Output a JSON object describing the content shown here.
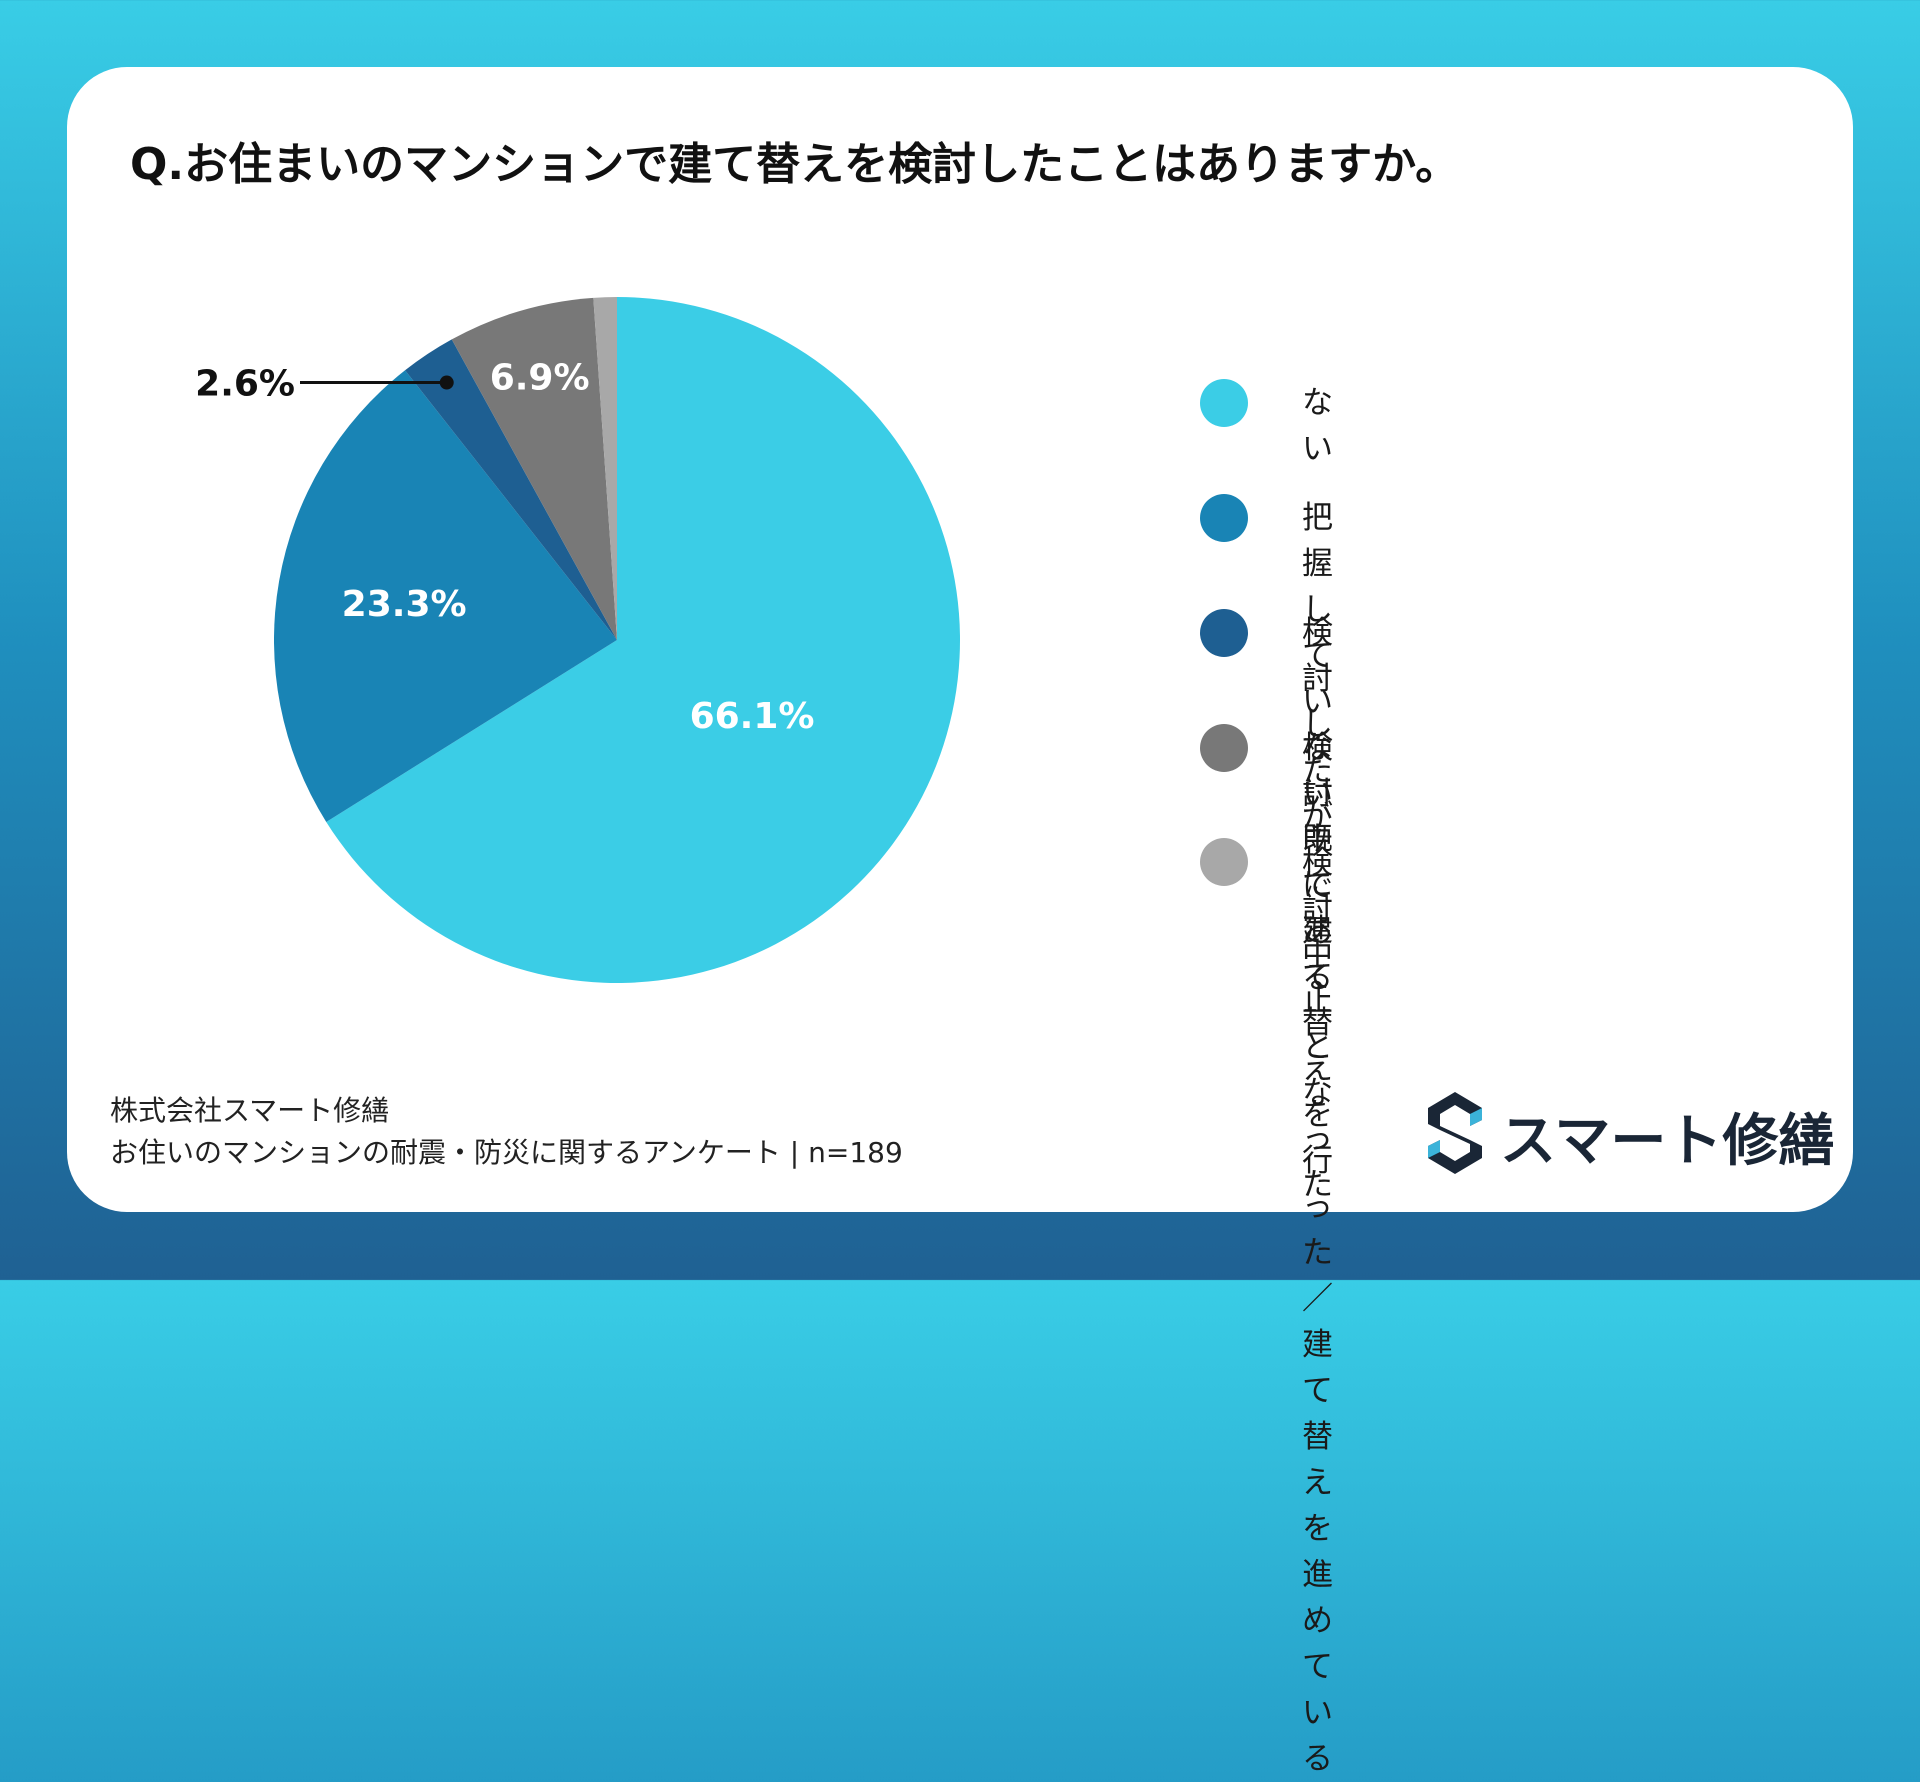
{
  "title": "Q.お住まいのマンションで建て替えを検討したことはありますか。",
  "chart_data": {
    "type": "pie",
    "start": "top",
    "direction": "clockwise",
    "slices": [
      {
        "label": "ない",
        "value": 66.1,
        "display": "66.1%",
        "color": "#3bcde6"
      },
      {
        "label": "把握していない",
        "value": 23.3,
        "display": "23.3%",
        "color": "#1984b5"
      },
      {
        "label": "検討したが検討中止となった",
        "value": 2.6,
        "display": "2.6%",
        "color": "#1e5f92"
      },
      {
        "label": "検討中である",
        "value": 6.9,
        "display": "6.9%",
        "color": "#787878"
      },
      {
        "label": "既に建て替えを行った／\n建て替えを進めている",
        "value": 1.1,
        "display": "",
        "color": "#a8a8a8"
      }
    ]
  },
  "footer": {
    "company": "株式会社スマート修繕",
    "survey": "お住いのマンションの耐震・防災に関するアンケート | n=189"
  },
  "logo": {
    "text": "スマート修繕",
    "icon": "s-logo-icon",
    "color": "#1a2636",
    "accent": "#3bb3d9"
  }
}
